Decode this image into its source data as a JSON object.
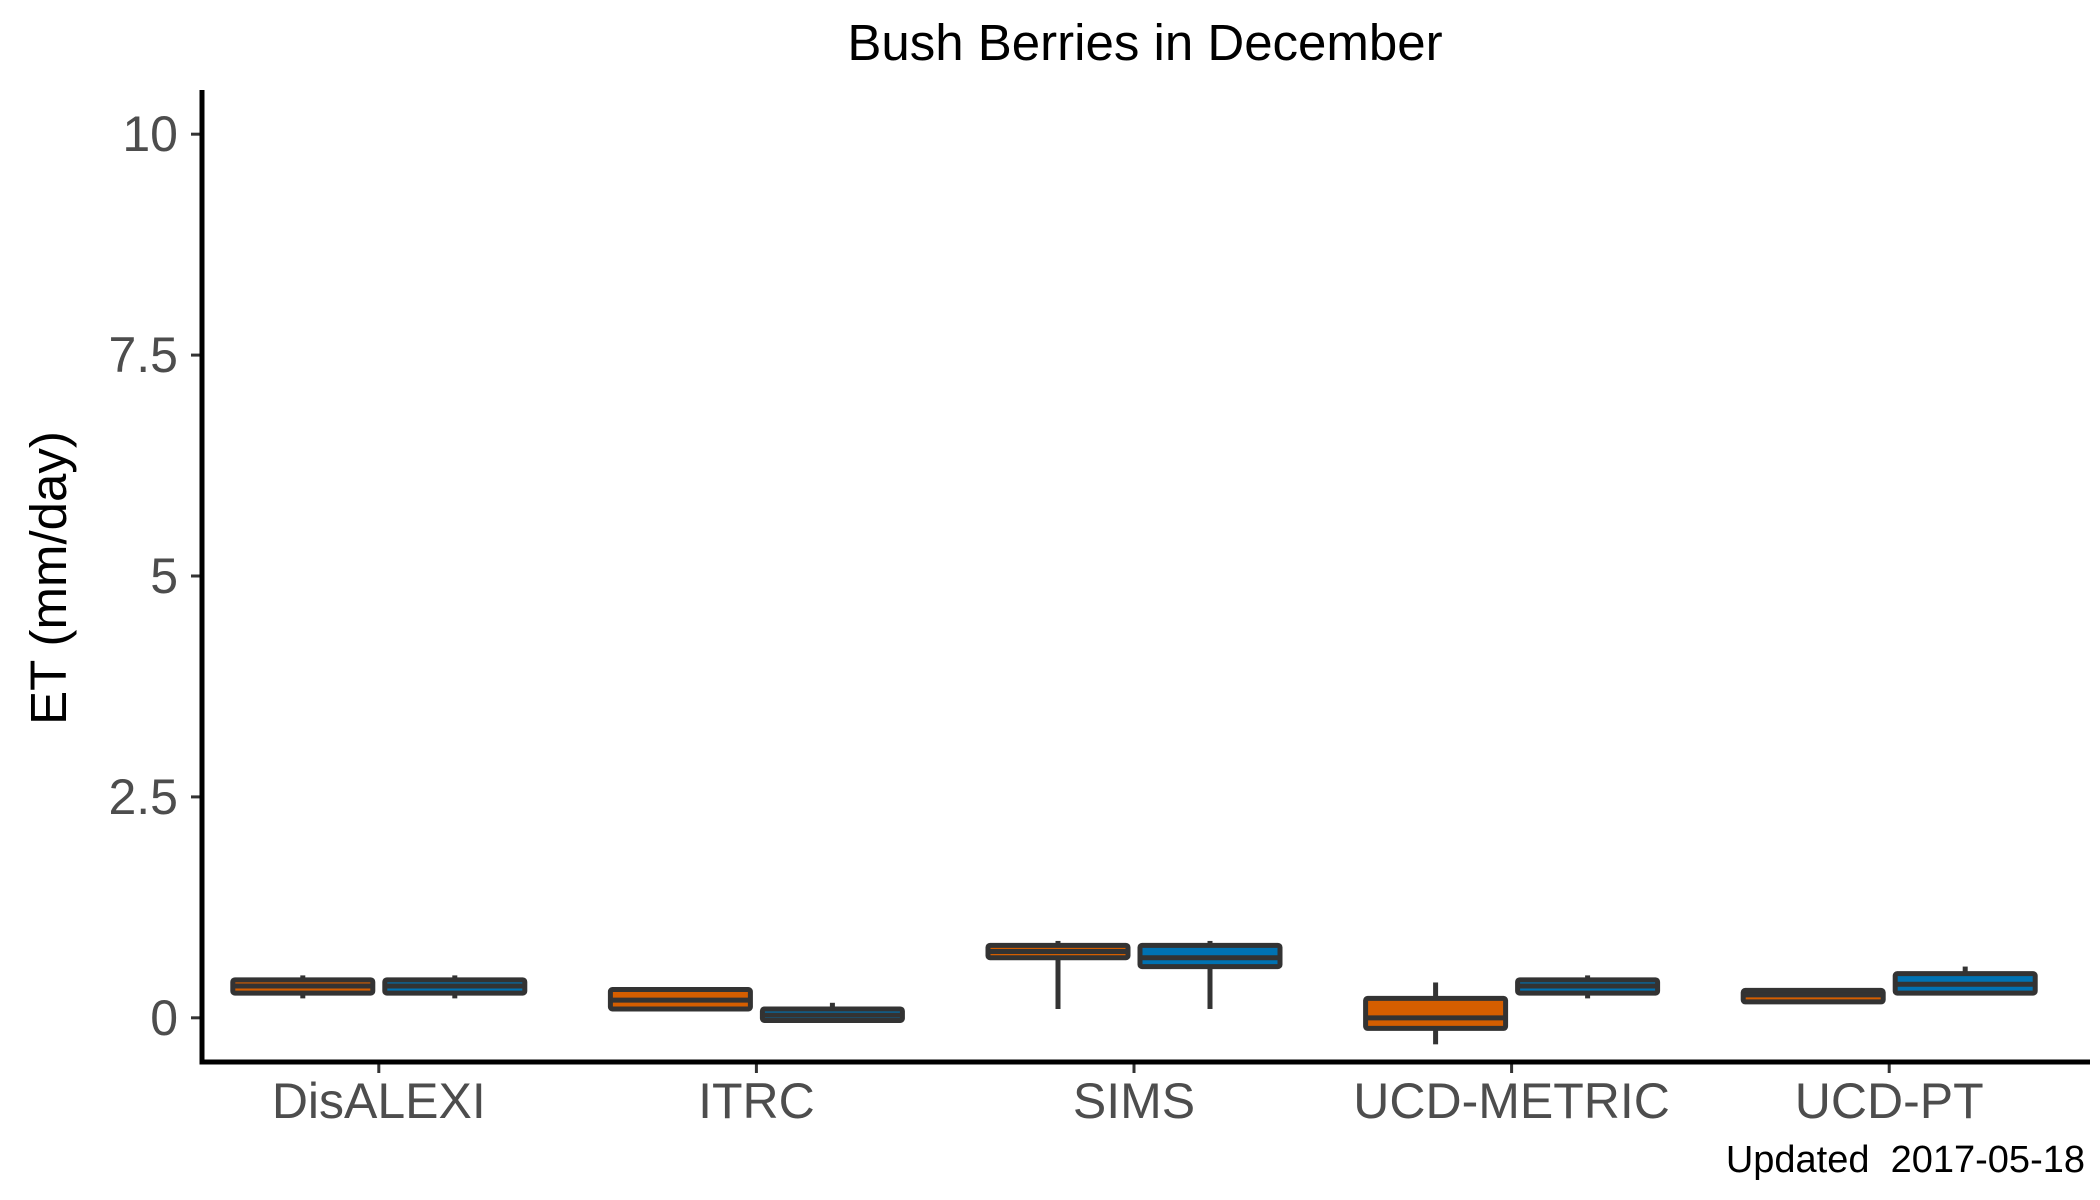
{
  "chart_data": {
    "type": "box",
    "title": "Bush Berries in December",
    "xlabel": "",
    "ylabel": "ET (mm/day)",
    "ylim": [
      -0.5,
      10.5
    ],
    "yticks": [
      "0",
      "2.5",
      "5",
      "7.5",
      "10"
    ],
    "categories": [
      "DisALEXI",
      "ITRC",
      "SIMS",
      "UCD-METRIC",
      "UCD-PT"
    ],
    "grid": false,
    "legend": "none",
    "colors": [
      "#d55e00",
      "#0072b2"
    ],
    "outline_color": "#333333",
    "series": [
      {
        "boxes": [
          {
            "min": 0.22,
            "q1": 0.28,
            "median": 0.36,
            "q3": 0.43,
            "max": 0.48
          },
          {
            "min": 0.1,
            "q1": 0.1,
            "median": 0.2,
            "q3": 0.32,
            "max": 0.32
          },
          {
            "min": 0.1,
            "q1": 0.68,
            "median": 0.75,
            "q3": 0.82,
            "max": 0.87
          },
          {
            "min": -0.3,
            "q1": -0.12,
            "median": 0.0,
            "q3": 0.22,
            "max": 0.4
          },
          {
            "min": 0.18,
            "q1": 0.18,
            "median": 0.26,
            "q3": 0.31,
            "max": 0.31
          }
        ]
      },
      {
        "boxes": [
          {
            "min": 0.22,
            "q1": 0.28,
            "median": 0.36,
            "q3": 0.43,
            "max": 0.48
          },
          {
            "min": -0.03,
            "q1": -0.03,
            "median": 0.03,
            "q3": 0.1,
            "max": 0.17
          },
          {
            "min": 0.1,
            "q1": 0.58,
            "median": 0.68,
            "q3": 0.82,
            "max": 0.87
          },
          {
            "min": 0.22,
            "q1": 0.28,
            "median": 0.36,
            "q3": 0.43,
            "max": 0.48
          },
          {
            "min": 0.28,
            "q1": 0.28,
            "median": 0.38,
            "q3": 0.5,
            "max": 0.58
          }
        ]
      }
    ],
    "annotation": "Updated  2017-05-18"
  }
}
